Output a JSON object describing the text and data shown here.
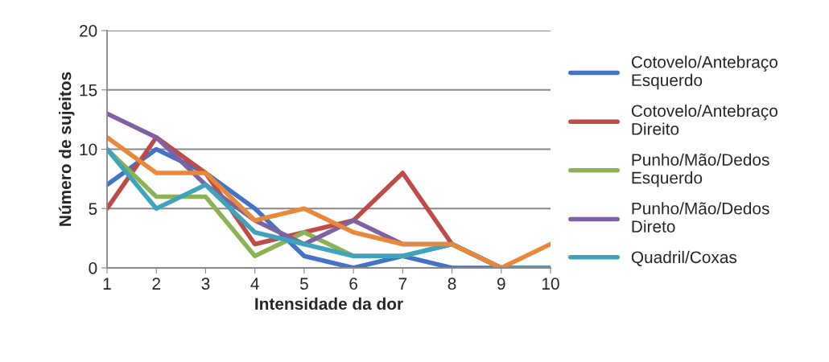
{
  "chart_data": {
    "type": "line",
    "xlabel": "Intensidade da dor",
    "ylabel": "Número de sujeitos",
    "x": [
      1,
      2,
      3,
      4,
      5,
      6,
      7,
      8,
      9,
      10
    ],
    "xlim": [
      1,
      10
    ],
    "xticks": [
      1,
      2,
      3,
      4,
      5,
      6,
      7,
      8,
      9,
      10
    ],
    "ylim": [
      0,
      20
    ],
    "yticks": [
      0,
      5,
      10,
      15,
      20
    ],
    "grid": "y",
    "legend": "right",
    "series": [
      {
        "name": "Cotovelo/Antebraço\nEsquerdo",
        "color": "#4472c4",
        "values": [
          7,
          10,
          8,
          5,
          1,
          0,
          1,
          0,
          0,
          0
        ]
      },
      {
        "name": "Cotovelo/Antebraço\nDireito",
        "color": "#be4b48",
        "values": [
          5,
          11,
          8,
          2,
          3,
          4,
          8,
          2,
          0,
          0
        ]
      },
      {
        "name": "Punho/Mão/Dedos\nEsquerdo",
        "color": "#8db255",
        "values": [
          10,
          6,
          6,
          1,
          3,
          1,
          1,
          2,
          0,
          0
        ]
      },
      {
        "name": "Punho/Mão/Dedos\nDireto",
        "color": "#7e62a1",
        "values": [
          13,
          11,
          7,
          4,
          2,
          4,
          2,
          2,
          0,
          0
        ]
      },
      {
        "name": "Quadril/Coxas",
        "color": "#3ea3bb",
        "values": [
          10,
          5,
          7,
          3,
          2,
          1,
          1,
          2,
          0,
          0
        ]
      },
      {
        "color": "#e8883a",
        "values": [
          11,
          8,
          8,
          4,
          5,
          3,
          2,
          2,
          0,
          2
        ]
      }
    ]
  }
}
